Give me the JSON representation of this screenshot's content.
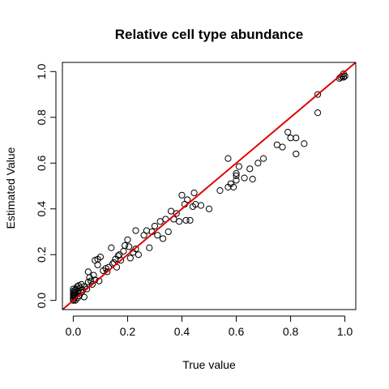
{
  "chart_data": {
    "type": "scatter",
    "title": "Relative cell type abundance",
    "xlabel": "True value",
    "ylabel": "Estimated Value",
    "xlim": [
      -0.04,
      1.04
    ],
    "ylim": [
      -0.04,
      1.04
    ],
    "xticks": [
      "0.0",
      "0.2",
      "0.4",
      "0.6",
      "0.8",
      "1.0"
    ],
    "yticks": [
      "0.0",
      "0.2",
      "0.4",
      "0.6",
      "0.8",
      "1.0"
    ],
    "grid": false,
    "legend": "none",
    "reference_line": {
      "slope": 1,
      "intercept": 0,
      "color": "#e00000"
    },
    "point_color": "#000000",
    "points": [
      [
        0.0,
        0.0
      ],
      [
        0.0,
        0.01
      ],
      [
        0.0,
        0.02
      ],
      [
        0.0,
        0.03
      ],
      [
        0.0,
        0.04
      ],
      [
        0.0,
        0.05
      ],
      [
        0.002,
        0.005
      ],
      [
        0.003,
        0.015
      ],
      [
        0.004,
        0.025
      ],
      [
        0.005,
        0.035
      ],
      [
        0.006,
        0.045
      ],
      [
        0.007,
        0.0
      ],
      [
        0.008,
        0.02
      ],
      [
        0.01,
        0.05
      ],
      [
        0.012,
        0.03
      ],
      [
        0.014,
        0.06
      ],
      [
        0.015,
        0.01
      ],
      [
        0.018,
        0.04
      ],
      [
        0.02,
        0.065
      ],
      [
        0.022,
        0.02
      ],
      [
        0.025,
        0.055
      ],
      [
        0.03,
        0.035
      ],
      [
        0.03,
        0.07
      ],
      [
        0.035,
        0.045
      ],
      [
        0.04,
        0.06
      ],
      [
        0.04,
        0.015
      ],
      [
        0.05,
        0.05
      ],
      [
        0.055,
        0.08
      ],
      [
        0.055,
        0.125
      ],
      [
        0.06,
        0.1
      ],
      [
        0.065,
        0.085
      ],
      [
        0.07,
        0.07
      ],
      [
        0.075,
        0.11
      ],
      [
        0.08,
        0.09
      ],
      [
        0.08,
        0.175
      ],
      [
        0.09,
        0.155
      ],
      [
        0.09,
        0.18
      ],
      [
        0.095,
        0.085
      ],
      [
        0.1,
        0.19
      ],
      [
        0.11,
        0.13
      ],
      [
        0.12,
        0.14
      ],
      [
        0.125,
        0.125
      ],
      [
        0.13,
        0.145
      ],
      [
        0.14,
        0.23
      ],
      [
        0.145,
        0.16
      ],
      [
        0.15,
        0.165
      ],
      [
        0.155,
        0.18
      ],
      [
        0.16,
        0.145
      ],
      [
        0.165,
        0.195
      ],
      [
        0.17,
        0.2
      ],
      [
        0.175,
        0.175
      ],
      [
        0.185,
        0.215
      ],
      [
        0.19,
        0.24
      ],
      [
        0.2,
        0.265
      ],
      [
        0.205,
        0.235
      ],
      [
        0.21,
        0.185
      ],
      [
        0.22,
        0.21
      ],
      [
        0.23,
        0.225
      ],
      [
        0.23,
        0.305
      ],
      [
        0.24,
        0.2
      ],
      [
        0.26,
        0.285
      ],
      [
        0.27,
        0.305
      ],
      [
        0.28,
        0.23
      ],
      [
        0.29,
        0.3
      ],
      [
        0.3,
        0.325
      ],
      [
        0.31,
        0.285
      ],
      [
        0.32,
        0.345
      ],
      [
        0.33,
        0.27
      ],
      [
        0.34,
        0.355
      ],
      [
        0.35,
        0.3
      ],
      [
        0.36,
        0.39
      ],
      [
        0.37,
        0.355
      ],
      [
        0.38,
        0.38
      ],
      [
        0.39,
        0.345
      ],
      [
        0.4,
        0.46
      ],
      [
        0.41,
        0.42
      ],
      [
        0.415,
        0.35
      ],
      [
        0.42,
        0.44
      ],
      [
        0.43,
        0.35
      ],
      [
        0.44,
        0.41
      ],
      [
        0.445,
        0.47
      ],
      [
        0.45,
        0.42
      ],
      [
        0.47,
        0.415
      ],
      [
        0.5,
        0.4
      ],
      [
        0.54,
        0.48
      ],
      [
        0.57,
        0.62
      ],
      [
        0.57,
        0.495
      ],
      [
        0.58,
        0.51
      ],
      [
        0.59,
        0.495
      ],
      [
        0.6,
        0.555
      ],
      [
        0.6,
        0.545
      ],
      [
        0.6,
        0.525
      ],
      [
        0.61,
        0.585
      ],
      [
        0.63,
        0.535
      ],
      [
        0.65,
        0.575
      ],
      [
        0.66,
        0.53
      ],
      [
        0.68,
        0.6
      ],
      [
        0.7,
        0.62
      ],
      [
        0.75,
        0.68
      ],
      [
        0.77,
        0.67
      ],
      [
        0.79,
        0.735
      ],
      [
        0.8,
        0.71
      ],
      [
        0.82,
        0.71
      ],
      [
        0.82,
        0.64
      ],
      [
        0.85,
        0.685
      ],
      [
        0.9,
        0.82
      ],
      [
        0.9,
        0.9
      ],
      [
        0.98,
        0.97
      ],
      [
        0.985,
        0.975
      ],
      [
        0.99,
        0.98
      ],
      [
        0.995,
        0.975
      ],
      [
        1.0,
        0.98
      ],
      [
        0.995,
        0.99
      ]
    ]
  }
}
